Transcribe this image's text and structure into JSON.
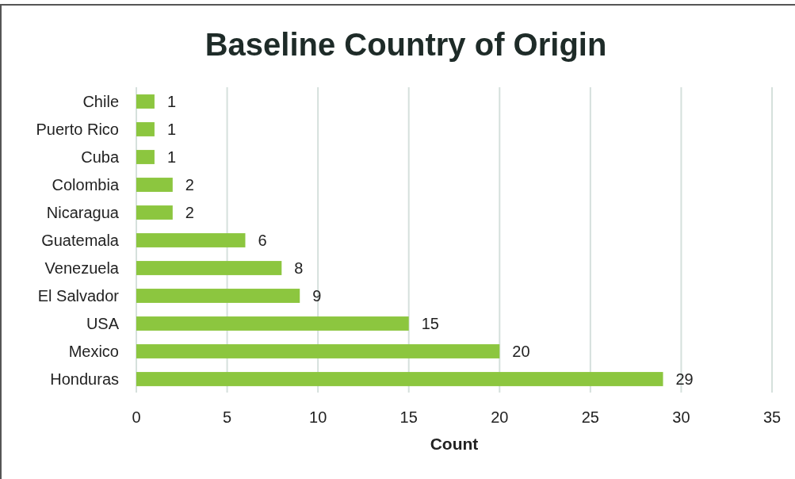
{
  "chart_data": {
    "type": "bar",
    "orientation": "horizontal",
    "title": "Baseline Country of Origin",
    "xlabel": "Count",
    "categories": [
      "Chile",
      "Puerto Rico",
      "Cuba",
      "Colombia",
      "Nicaragua",
      "Guatemala",
      "Venezuela",
      "El Salvador",
      "USA",
      "Mexico",
      "Honduras"
    ],
    "values": [
      1,
      1,
      1,
      2,
      2,
      6,
      8,
      9,
      15,
      20,
      29
    ],
    "color": "#8cc63f",
    "xlim": [
      0,
      35
    ],
    "xticks": [
      0,
      5,
      10,
      15,
      20,
      25,
      30,
      35
    ],
    "grid": "x",
    "data_labels": true
  }
}
